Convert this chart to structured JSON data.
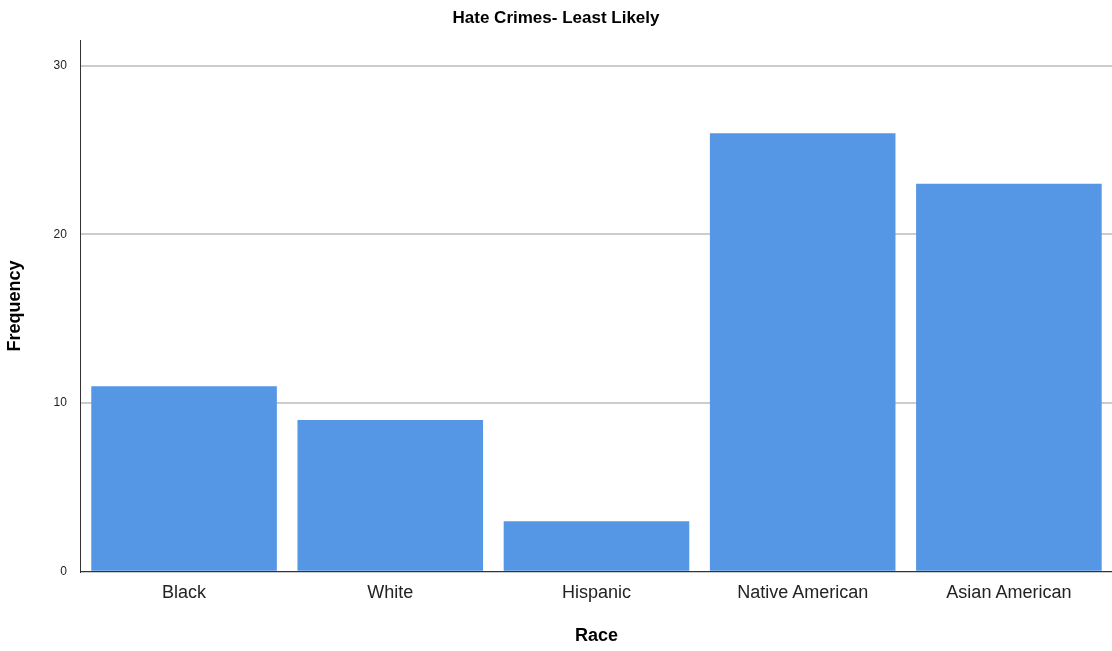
{
  "chart_data": {
    "type": "bar",
    "title": "Hate Crimes- Least Likely",
    "xlabel": "Race",
    "ylabel": "Frequency",
    "categories": [
      "Black",
      "White",
      "Hispanic",
      "Native American",
      "Asian American"
    ],
    "values": [
      11,
      9,
      3,
      26,
      23
    ],
    "color": "#5596e5",
    "ylim": [
      0,
      31.5
    ],
    "yticks": [
      0,
      10,
      20,
      30
    ],
    "grid": "y"
  }
}
